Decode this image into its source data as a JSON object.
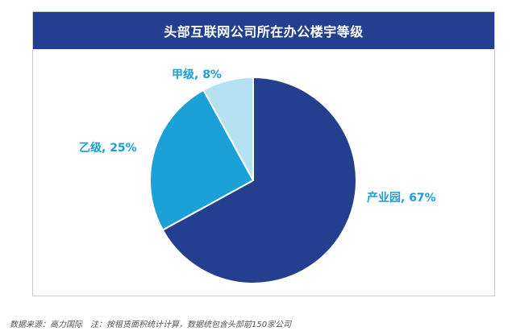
{
  "title": "头部互联网公司所在办公楼宇等级",
  "footer": "数据来源：高力国际　注：按租赁面积统计计算，数据统包含头部前150家公司",
  "chart_data": {
    "type": "pie",
    "title": "头部互联网公司所在办公楼宇等级",
    "slices": [
      {
        "label": "产业园",
        "value": 67,
        "display": "产业园, 67%",
        "color": "#243f8f"
      },
      {
        "label": "乙级",
        "value": 25,
        "display": "乙级, 25%",
        "color": "#1ba0d8"
      },
      {
        "label": "甲级",
        "value": 8,
        "display": "甲级, 8%",
        "color": "#b5e2f3"
      }
    ],
    "start": "12 o'clock",
    "direction": "clockwise",
    "label_color": "#1a9fd6"
  }
}
